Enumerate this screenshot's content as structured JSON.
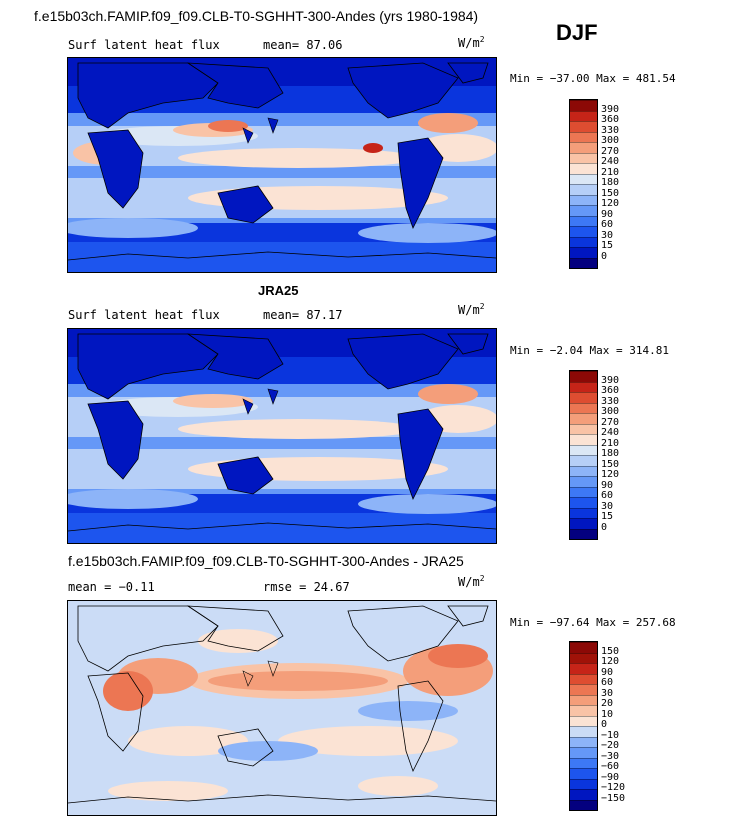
{
  "season": "DJF",
  "units_text": "W/m",
  "units_sup": "2",
  "panels": [
    {
      "title": "f.e15b03ch.FAMIP.f09_f09.CLB-T0-SGHHT-300-Andes (yrs 1980-1984)",
      "left_label": "Surf latent heat flux",
      "right_label": "mean=  87.06",
      "minmax": "Min = −37.00 Max = 481.54",
      "colorbar_levels": [
        "0",
        "15",
        "30",
        "60",
        "90",
        "120",
        "150",
        "180",
        "210",
        "240",
        "270",
        "300",
        "330",
        "360",
        "390"
      ],
      "colorbar_colors": [
        "#04007f",
        "#0016c0",
        "#0a35dd",
        "#1d55ee",
        "#3d78f5",
        "#6598f7",
        "#8db4f8",
        "#b6cff7",
        "#dbe7f5",
        "#fbe3d4",
        "#f9c3a6",
        "#f49e7a",
        "#ec7653",
        "#de4d31",
        "#c62418",
        "#8c0906"
      ],
      "chart_data": {
        "type": "heatmap",
        "variable": "Surf latent heat flux",
        "mean": 87.06,
        "min": -37.0,
        "max": 481.54,
        "contour_levels": [
          0,
          15,
          30,
          60,
          90,
          120,
          150,
          180,
          210,
          240,
          270,
          300,
          330,
          360,
          390
        ]
      }
    },
    {
      "title": "JRA25",
      "left_label": "Surf latent heat flux",
      "right_label": "mean=  87.17",
      "minmax": "Min =  −2.04 Max = 314.81",
      "colorbar_levels": [
        "0",
        "15",
        "30",
        "60",
        "90",
        "120",
        "150",
        "180",
        "210",
        "240",
        "270",
        "300",
        "330",
        "360",
        "390"
      ],
      "colorbar_colors": [
        "#04007f",
        "#0016c0",
        "#0a35dd",
        "#1d55ee",
        "#3d78f5",
        "#6598f7",
        "#8db4f8",
        "#b6cff7",
        "#dbe7f5",
        "#fbe3d4",
        "#f9c3a6",
        "#f49e7a",
        "#ec7653",
        "#de4d31",
        "#c62418",
        "#8c0906"
      ],
      "chart_data": {
        "type": "heatmap",
        "variable": "Surf latent heat flux",
        "mean": 87.17,
        "min": -2.04,
        "max": 314.81,
        "contour_levels": [
          0,
          15,
          30,
          60,
          90,
          120,
          150,
          180,
          210,
          240,
          270,
          300,
          330,
          360,
          390
        ]
      }
    },
    {
      "title": "f.e15b03ch.FAMIP.f09_f09.CLB-T0-SGHHT-300-Andes - JRA25",
      "left_label": "mean =  −0.11",
      "right_label": "rmse =  24.67",
      "minmax": "Min = −97.64 Max = 257.68",
      "colorbar_levels": [
        "−150",
        "−120",
        "−90",
        "−60",
        "−30",
        "−20",
        "−10",
        "0",
        "10",
        "20",
        "30",
        "60",
        "90",
        "120",
        "150"
      ],
      "colorbar_colors": [
        "#04007f",
        "#0016c0",
        "#0a35dd",
        "#1d55ee",
        "#3d78f5",
        "#6598f7",
        "#8db4f8",
        "#cbdcf6",
        "#fbe3d4",
        "#f9c3a6",
        "#f49e7a",
        "#ec7653",
        "#de4d31",
        "#c62418",
        "#a01208",
        "#8c0906"
      ],
      "chart_data": {
        "type": "heatmap",
        "mean": -0.11,
        "rmse": 24.67,
        "min": -97.64,
        "max": 257.68,
        "contour_levels": [
          -150,
          -120,
          -90,
          -60,
          -30,
          -20,
          -10,
          0,
          10,
          20,
          30,
          60,
          90,
          120,
          150
        ]
      }
    }
  ]
}
